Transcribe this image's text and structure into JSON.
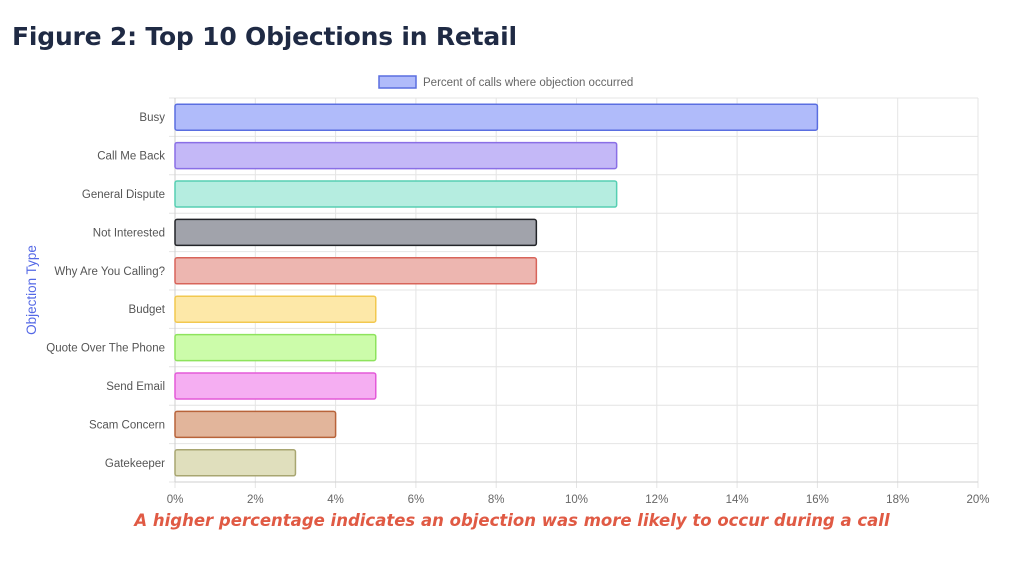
{
  "figure": {
    "title": "Figure 2: Top 10 Objections in Retail",
    "caption": "A higher percentage indicates an objection was more likely to occur during a call"
  },
  "chart_data": {
    "type": "bar",
    "orientation": "horizontal",
    "categories": [
      "Busy",
      "Call Me Back",
      "General Dispute",
      "Not Interested",
      "Why Are You Calling?",
      "Budget",
      "Quote Over The Phone",
      "Send Email",
      "Scam Concern",
      "Gatekeeper"
    ],
    "series": [
      {
        "name": "Percent of calls where objection occurred",
        "values": [
          16,
          11,
          11,
          9,
          9,
          5,
          5,
          5,
          4,
          3
        ]
      }
    ],
    "bar_colors": [
      {
        "fill": "#b0bbfa",
        "stroke": "#5a6ee0"
      },
      {
        "fill": "#c4b8f7",
        "stroke": "#8a6fe6"
      },
      {
        "fill": "#b5ede0",
        "stroke": "#56cfb2"
      },
      {
        "fill": "#a1a3ab",
        "stroke": "#222428"
      },
      {
        "fill": "#edb6b0",
        "stroke": "#d8645a"
      },
      {
        "fill": "#fde8a8",
        "stroke": "#f2c84f"
      },
      {
        "fill": "#ccfcaa",
        "stroke": "#8ee35d"
      },
      {
        "fill": "#f5aef2",
        "stroke": "#e35ad8"
      },
      {
        "fill": "#e2b59b",
        "stroke": "#b8633a"
      },
      {
        "fill": "#e0dfbd",
        "stroke": "#a8a671"
      }
    ],
    "xlabel": "",
    "ylabel": "Objection Type",
    "xlim": [
      0,
      20
    ],
    "x_ticks": [
      0,
      2,
      4,
      6,
      8,
      10,
      12,
      14,
      16,
      18,
      20
    ],
    "tick_suffix": "%",
    "grid": true,
    "legend_position": "top-center"
  }
}
